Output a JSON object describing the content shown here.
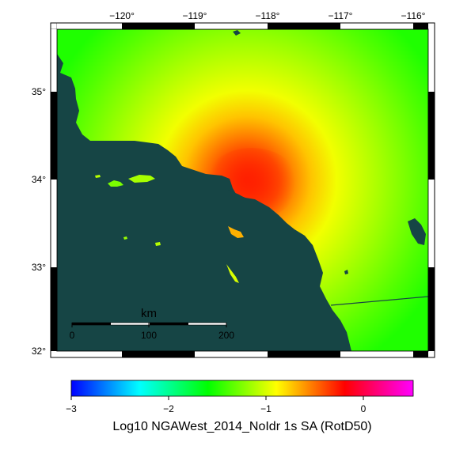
{
  "map": {
    "lon_ticks": [
      "−120°",
      "−119°",
      "−118°",
      "−117°",
      "−116°"
    ],
    "lat_ticks": [
      "35°",
      "34°",
      "33°",
      "32°"
    ],
    "scale_bar": {
      "title": "km",
      "labels": [
        "0",
        "100",
        "200"
      ]
    },
    "colors": {
      "ocean": "#164545",
      "background": "#1fff00"
    }
  },
  "colorbar": {
    "ticks": [
      "−3",
      "−2",
      "−1",
      "0"
    ],
    "title": "Log10 NGAWest_2014_NoIdr 1s SA (RotD50)",
    "stops": [
      "#0000ff",
      "#00ffff",
      "#00ff00",
      "#ffff00",
      "#ff0000",
      "#ff00ff"
    ]
  }
}
